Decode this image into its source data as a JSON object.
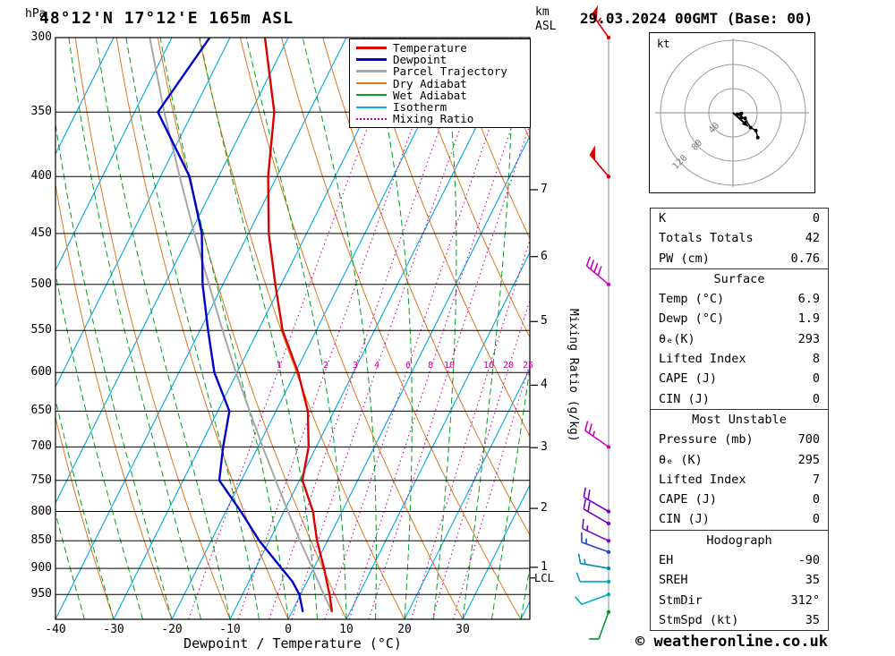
{
  "header": {
    "pressure_unit": "hPa",
    "station_title": "48°12'N 17°12'E 165m ASL",
    "date_title": "29.03.2024 00GMT (Base: 00)",
    "km_line1": "km",
    "km_line2": "ASL"
  },
  "axes": {
    "pressure_levels": [
      300,
      350,
      400,
      450,
      500,
      550,
      600,
      650,
      700,
      750,
      800,
      850,
      900,
      950
    ],
    "temp_ticks": [
      -40,
      -30,
      -20,
      -10,
      0,
      10,
      20,
      30
    ],
    "x_title": "Dewpoint / Temperature (°C)",
    "right_axis_title": "Mixing Ratio (g/kg)",
    "lcl_label": "LCL",
    "km_unit": "km ASL"
  },
  "colors": {
    "temperature": "#dd0000",
    "dewpoint": "#0000cc",
    "parcel": "#a8a8a8",
    "dry_adiabat": "#dd7722",
    "wet_adiabat": "#00a020",
    "isotherm": "#00aaee",
    "mixing_ratio": "#cc0099",
    "grid": "#000000",
    "barb_line": "#8899aa"
  },
  "legend": {
    "items": [
      {
        "label": "Temperature",
        "key": "temperature",
        "style": "solid",
        "thick": true
      },
      {
        "label": "Dewpoint",
        "key": "dewpoint",
        "style": "solid",
        "thick": true
      },
      {
        "label": "Parcel Trajectory",
        "key": "parcel",
        "style": "solid",
        "thick": true
      },
      {
        "label": "Dry Adiabat",
        "key": "dry_adiabat",
        "style": "solid",
        "thick": false
      },
      {
        "label": "Wet Adiabat",
        "key": "wet_adiabat",
        "style": "solid",
        "thick": false
      },
      {
        "label": "Isotherm",
        "key": "isotherm",
        "style": "solid",
        "thick": false
      },
      {
        "label": "Mixing Ratio",
        "key": "mixing_ratio",
        "style": "dotted",
        "thick": false
      }
    ]
  },
  "chart_data": {
    "type": "line",
    "title": "48°12'N 17°12'E 165m ASL",
    "subtitle": "29.03.2024 00GMT (Base: 00)",
    "diagram": "skew-t log-p sounding",
    "pressure_axis": {
      "scale": "log",
      "min": 300,
      "max": 1000,
      "unit": "hPa"
    },
    "temp_axis": {
      "min": -40,
      "max": 40,
      "unit": "°C",
      "skewed": true
    },
    "series": [
      {
        "name": "Temperature",
        "color_key": "temperature",
        "points": [
          [
            985,
            6.9
          ],
          [
            950,
            5.0
          ],
          [
            925,
            3.4
          ],
          [
            900,
            1.8
          ],
          [
            850,
            -1.8
          ],
          [
            800,
            -5.0
          ],
          [
            750,
            -9.5
          ],
          [
            700,
            -11.3
          ],
          [
            650,
            -14.5
          ],
          [
            600,
            -19.5
          ],
          [
            550,
            -25.8
          ],
          [
            500,
            -31.0
          ],
          [
            450,
            -36.5
          ],
          [
            400,
            -41.5
          ],
          [
            350,
            -46.0
          ],
          [
            300,
            -54.0
          ]
        ]
      },
      {
        "name": "Dewpoint",
        "color_key": "dewpoint",
        "points": [
          [
            985,
            1.9
          ],
          [
            950,
            -0.2
          ],
          [
            925,
            -2.5
          ],
          [
            900,
            -5.5
          ],
          [
            850,
            -11.7
          ],
          [
            800,
            -17.4
          ],
          [
            750,
            -23.8
          ],
          [
            700,
            -26.0
          ],
          [
            650,
            -28.0
          ],
          [
            600,
            -33.9
          ],
          [
            550,
            -38.6
          ],
          [
            500,
            -43.5
          ],
          [
            450,
            -48.0
          ],
          [
            400,
            -55.0
          ],
          [
            350,
            -66.0
          ],
          [
            300,
            -63.5
          ]
        ]
      },
      {
        "name": "Parcel Trajectory",
        "color_key": "parcel",
        "points": [
          [
            985,
            6.9
          ],
          [
            950,
            4.0
          ],
          [
            900,
            -0.2
          ],
          [
            850,
            -4.7
          ],
          [
            800,
            -9.3
          ],
          [
            750,
            -14.1
          ],
          [
            700,
            -19.2
          ],
          [
            650,
            -24.5
          ],
          [
            600,
            -30.2
          ],
          [
            550,
            -36.1
          ],
          [
            500,
            -42.4
          ],
          [
            450,
            -49.3
          ],
          [
            400,
            -56.7
          ],
          [
            350,
            -64.9
          ],
          [
            300,
            -73.8
          ]
        ]
      }
    ],
    "isotherms": {
      "start": -100,
      "end": 40,
      "step": 10
    },
    "dry_adiabats": {
      "start": -40,
      "end": 120,
      "step": 10
    },
    "wet_adiabats": {
      "start": -55,
      "end": 40,
      "step": 5
    },
    "mixing_ratio_lines": [
      1,
      2,
      3,
      4,
      6,
      8,
      10,
      16,
      20,
      25
    ],
    "km_asl_ticks": [
      {
        "km": 1,
        "p": 898
      },
      {
        "km": 2,
        "p": 795
      },
      {
        "km": 3,
        "p": 701
      },
      {
        "km": 4,
        "p": 616
      },
      {
        "km": 5,
        "p": 540
      },
      {
        "km": 6,
        "p": 472
      },
      {
        "km": 7,
        "p": 411
      }
    ],
    "lcl_pressure": 918,
    "wind_barbs": [
      {
        "p": 300,
        "spd": 55,
        "dir": 325,
        "color": "#dd0000"
      },
      {
        "p": 400,
        "spd": 50,
        "dir": 320,
        "color": "#dd0000"
      },
      {
        "p": 500,
        "spd": 40,
        "dir": 310,
        "color": "#cc00bb"
      },
      {
        "p": 700,
        "spd": 25,
        "dir": 305,
        "color": "#cc00bb"
      },
      {
        "p": 800,
        "spd": 20,
        "dir": 300,
        "color": "#7a00cc"
      },
      {
        "p": 820,
        "spd": 20,
        "dir": 300,
        "color": "#7a00cc"
      },
      {
        "p": 850,
        "spd": 15,
        "dir": 295,
        "color": "#7a00cc"
      },
      {
        "p": 870,
        "spd": 15,
        "dir": 290,
        "color": "#2244cc"
      },
      {
        "p": 900,
        "spd": 15,
        "dir": 280,
        "color": "#0088bb"
      },
      {
        "p": 925,
        "spd": 10,
        "dir": 270,
        "color": "#00a0c8"
      },
      {
        "p": 950,
        "spd": 10,
        "dir": 250,
        "color": "#00b0c0"
      },
      {
        "p": 985,
        "spd": 10,
        "dir": 200,
        "color": "#009933"
      }
    ]
  },
  "hodograph": {
    "unit_label": "kt",
    "rings": [
      {
        "label": "40",
        "kt": 40
      },
      {
        "label": "80",
        "kt": 80
      },
      {
        "label": "120",
        "kt": 120
      }
    ],
    "winds": [
      {
        "p": 985,
        "spd": 8,
        "dir": 290
      },
      {
        "p": 950,
        "spd": 12,
        "dir": 285
      },
      {
        "p": 900,
        "spd": 14,
        "dir": 275
      },
      {
        "p": 850,
        "spd": 16,
        "dir": 300
      },
      {
        "p": 700,
        "spd": 22,
        "dir": 295
      },
      {
        "p": 500,
        "spd": 38,
        "dir": 310
      },
      {
        "p": 400,
        "spd": 48,
        "dir": 308
      },
      {
        "p": 300,
        "spd": 58,
        "dir": 315
      }
    ],
    "storm_motion": {
      "dir": 312,
      "spd": 35
    }
  },
  "table": {
    "sections": [
      {
        "title": null,
        "rows": [
          [
            "K",
            "0"
          ],
          [
            "Totals Totals",
            "42"
          ],
          [
            "PW (cm)",
            "0.76"
          ]
        ]
      },
      {
        "title": "Surface",
        "rows": [
          [
            "Temp (°C)",
            "6.9"
          ],
          [
            "Dewp (°C)",
            "1.9"
          ],
          [
            "θₑ(K)",
            "293"
          ],
          [
            "Lifted Index",
            "8"
          ],
          [
            "CAPE (J)",
            "0"
          ],
          [
            "CIN (J)",
            "0"
          ]
        ]
      },
      {
        "title": "Most Unstable",
        "rows": [
          [
            "Pressure (mb)",
            "700"
          ],
          [
            "θₑ (K)",
            "295"
          ],
          [
            "Lifted Index",
            "7"
          ],
          [
            "CAPE (J)",
            "0"
          ],
          [
            "CIN (J)",
            "0"
          ]
        ]
      },
      {
        "title": "Hodograph",
        "rows": [
          [
            "EH",
            "-90"
          ],
          [
            "SREH",
            "35"
          ],
          [
            "StmDir",
            "312°"
          ],
          [
            "StmSpd (kt)",
            "35"
          ]
        ]
      }
    ]
  },
  "footer": {
    "copyright": "© weatheronline.co.uk"
  }
}
